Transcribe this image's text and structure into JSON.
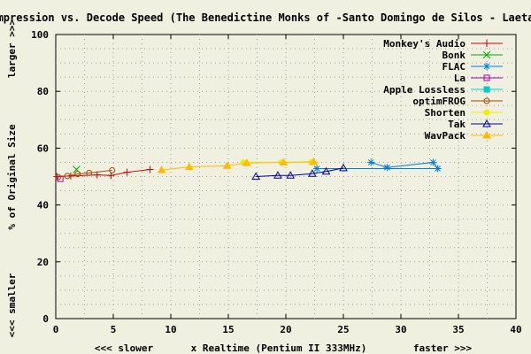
{
  "chart_data": {
    "type": "line",
    "title": "ompression vs. Decode Speed (The Benedictine Monks of -Santo Domingo de Silos - Laetat",
    "xlabel": "x Realtime (Pentium II 333MHz)",
    "xlabel_left": "<<< slower",
    "xlabel_right": "faster >>>",
    "ylabel": "% of Original Size",
    "ylabel_top": "larger >>>",
    "ylabel_bottom": "<<< smaller",
    "xlim": [
      0,
      40
    ],
    "ylim": [
      0,
      100
    ],
    "xticks": [
      "0",
      "5",
      "10",
      "15",
      "20",
      "25",
      "30",
      "35",
      "40"
    ],
    "yticks": [
      "0",
      "20",
      "40",
      "60",
      "80",
      "100"
    ],
    "grid": true,
    "legend_position": "top-right",
    "series": [
      {
        "name": "Monkey's Audio",
        "color": "#cc0000",
        "marker": "plus",
        "x": [
          0.1,
          1.3,
          3.6,
          4.8,
          6.2,
          8.2
        ],
        "y": [
          50.0,
          50.2,
          50.6,
          50.4,
          51.5,
          52.5
        ]
      },
      {
        "name": "Bonk",
        "color": "#00aa00",
        "marker": "cross",
        "x": [
          1.8
        ],
        "y": [
          52.5
        ]
      },
      {
        "name": "FLAC",
        "color": "#0080dd",
        "marker": "star",
        "x": [
          27.4,
          28.8,
          32.8,
          33.2,
          22.7
        ],
        "y": [
          55.0,
          53.2,
          55.0,
          52.8,
          52.8
        ]
      },
      {
        "name": "La",
        "color": "#aa00aa",
        "marker": "square",
        "x": [
          0.4
        ],
        "y": [
          49.2
        ]
      },
      {
        "name": "Apple Lossless",
        "color": "#00cccc",
        "marker": "filled-square",
        "x": [],
        "y": []
      },
      {
        "name": "optimFROG",
        "color": "#aa4400",
        "marker": "circle",
        "x": [
          0.2,
          1.0,
          1.9,
          2.9,
          4.9
        ],
        "y": [
          49.8,
          50.2,
          50.9,
          51.3,
          52.2
        ]
      },
      {
        "name": "Shorten",
        "color": "#eeee00",
        "marker": "filled-circle",
        "x": [
          16.3,
          19.6,
          22.2
        ],
        "y": [
          55.0,
          55.0,
          55.0
        ]
      },
      {
        "name": "Tak",
        "color": "#000099",
        "marker": "triangle",
        "x": [
          17.4,
          19.3,
          20.4,
          22.3,
          23.5,
          25.0
        ],
        "y": [
          50.0,
          50.4,
          50.4,
          51.0,
          51.8,
          53.0
        ]
      },
      {
        "name": "WavPack",
        "color": "#ffbb00",
        "marker": "filled-triangle",
        "x": [
          9.2,
          11.6,
          14.9,
          16.6,
          19.8,
          22.4
        ],
        "y": [
          52.3,
          53.4,
          53.8,
          54.8,
          55.0,
          55.2
        ]
      }
    ]
  }
}
